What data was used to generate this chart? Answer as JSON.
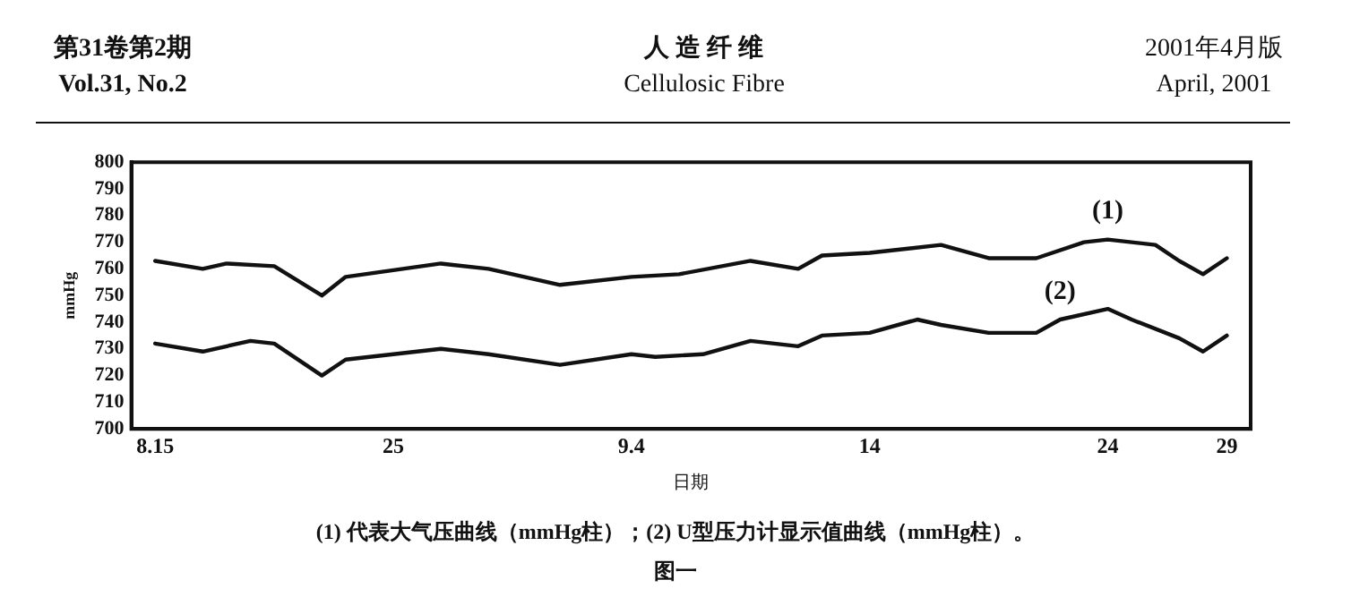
{
  "chart_data": {
    "type": "line",
    "title": null,
    "xlabel": "日期",
    "ylabel": "mmHg",
    "x": [
      "--08-15",
      "--08-17",
      "--08-18",
      "--08-20",
      "--08-22",
      "--08-23",
      "--08-27",
      "--08-29",
      "--09-01",
      "--09-04",
      "--09-06",
      "--09-09",
      "--09-11",
      "--09-12",
      "--09-14",
      "--09-17",
      "--09-19",
      "--09-21",
      "--09-23",
      "--09-24",
      "--09-26",
      "--09-27",
      "--09-28",
      "--09-29"
    ],
    "series": [
      {
        "name": "(1)",
        "color": "#111111",
        "values": [
          763,
          760,
          762,
          761,
          750,
          757,
          762,
          760,
          754,
          757,
          758,
          763,
          760,
          765,
          766,
          769,
          764,
          764,
          770,
          771,
          769,
          763,
          758,
          764
        ]
      },
      {
        "name": "(2)",
        "color": "#111111",
        "x": [
          "--08-15",
          "--08-17",
          "--08-19",
          "--08-20",
          "--08-22",
          "--08-23",
          "--08-27",
          "--08-29",
          "--09-01",
          "--09-04",
          "--09-05",
          "--09-07",
          "--09-09",
          "--09-11",
          "--09-12",
          "--09-14",
          "--09-16",
          "--09-17",
          "--09-19",
          "--09-21",
          "--09-22",
          "--09-24",
          "--09-25",
          "--09-27",
          "--09-28",
          "--09-29"
        ],
        "values": [
          732,
          729,
          733,
          732,
          720,
          726,
          730,
          728,
          724,
          728,
          727,
          728,
          733,
          731,
          735,
          736,
          741,
          739,
          736,
          736,
          741,
          745,
          741,
          734,
          729,
          735
        ]
      }
    ],
    "xlim": [
      "--08-14",
      "--09-30"
    ],
    "xticks": [
      {
        "value": "--08-15",
        "label": "8.15"
      },
      {
        "value": "--08-25",
        "label": "25"
      },
      {
        "value": "--09-04",
        "label": "9.4"
      },
      {
        "value": "--09-14",
        "label": "14"
      },
      {
        "value": "--09-24",
        "label": "24"
      },
      {
        "value": "--09-29",
        "label": "29"
      }
    ],
    "ylim": [
      700,
      800
    ],
    "yticks": [
      700,
      710,
      720,
      730,
      740,
      750,
      760,
      770,
      780,
      790,
      800
    ],
    "grid": false,
    "legend": false,
    "marker": "none",
    "line_style": "solid",
    "annotations": [
      "第31卷第2期",
      "Vol.31, No.2",
      "人 造 纤 维",
      "Cellulosic Fibre",
      "2001年4月版",
      "April, 2001",
      "(1) 代表大气压曲线（mmHg柱）；(2) U型压力计显示值曲线（mmHg柱）。",
      "图一"
    ]
  }
}
